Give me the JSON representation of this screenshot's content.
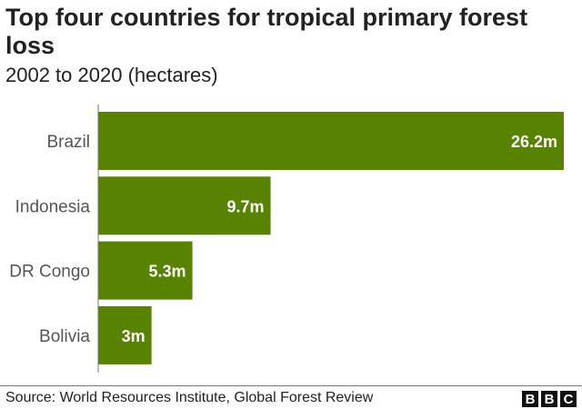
{
  "chart_data": {
    "type": "bar",
    "orientation": "horizontal",
    "title": "Top four countries for tropical primary forest loss",
    "subtitle": "2002 to 2020 (hectares)",
    "categories": [
      "Brazil",
      "Indonesia",
      "DR Congo",
      "Bolivia"
    ],
    "values": [
      26.2,
      9.7,
      5.3,
      3
    ],
    "data_labels": [
      "26.2m",
      "9.7m",
      "5.3m",
      "3m"
    ],
    "unit": "million hectares",
    "color": "#588300",
    "grid": false
  },
  "footer": {
    "source": "Source: World Resources Institute, Global Forest Review",
    "logo": "BBC"
  }
}
